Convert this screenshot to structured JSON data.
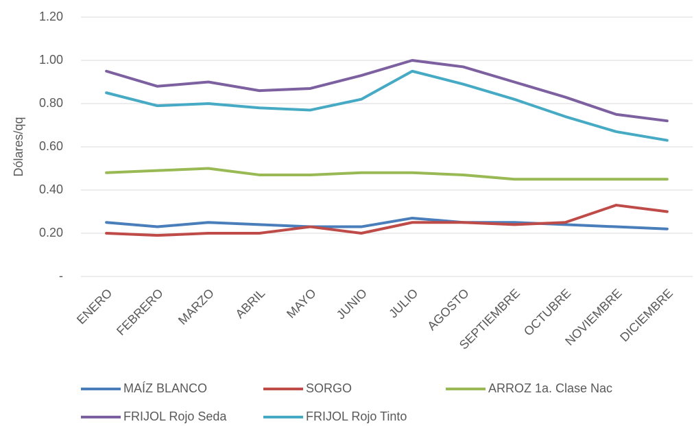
{
  "chart_data": {
    "type": "line",
    "y_label": "Dólares/qq",
    "categories": [
      "ENERO",
      "FEBRERO",
      "MARZO",
      "ABRIL",
      "MAYO",
      "JUNIO",
      "JULIO",
      "AGOSTO",
      "SEPTIEMBRE",
      "OCTUBRE",
      "NOVIEMBRE",
      "DICIEMBRE"
    ],
    "series": [
      {
        "name": "MAÍZ BLANCO",
        "color": "#4a7ebb",
        "values": [
          0.25,
          0.23,
          0.25,
          0.24,
          0.23,
          0.23,
          0.27,
          0.25,
          0.25,
          0.24,
          0.23,
          0.22
        ]
      },
      {
        "name": "SORGO",
        "color": "#be4b48",
        "values": [
          0.2,
          0.19,
          0.2,
          0.2,
          0.23,
          0.2,
          0.25,
          0.25,
          0.24,
          0.25,
          0.33,
          0.3
        ]
      },
      {
        "name": "ARROZ 1a. Clase Nac",
        "color": "#98b954",
        "values": [
          0.48,
          0.49,
          0.5,
          0.47,
          0.47,
          0.48,
          0.48,
          0.47,
          0.45,
          0.45,
          0.45,
          0.45
        ]
      },
      {
        "name": "FRIJOL Rojo Seda",
        "color": "#7d60a0",
        "values": [
          0.95,
          0.88,
          0.9,
          0.86,
          0.87,
          0.93,
          1.0,
          0.97,
          0.9,
          0.83,
          0.75,
          0.72
        ]
      },
      {
        "name": "FRIJOL Rojo Tinto",
        "color": "#46aac5",
        "values": [
          0.85,
          0.79,
          0.8,
          0.78,
          0.77,
          0.82,
          0.95,
          0.89,
          0.82,
          0.74,
          0.67,
          0.63
        ]
      }
    ],
    "ylim": [
      0,
      1.2
    ],
    "yticks": [
      {
        "value": 0,
        "label": "-"
      },
      {
        "value": 0.2,
        "label": "0.20"
      },
      {
        "value": 0.4,
        "label": "0.40"
      },
      {
        "value": 0.6,
        "label": "0.60"
      },
      {
        "value": 0.8,
        "label": "0.80"
      },
      {
        "value": 1.0,
        "label": "1.00"
      },
      {
        "value": 1.2,
        "label": "1.20"
      }
    ],
    "grid": true
  }
}
